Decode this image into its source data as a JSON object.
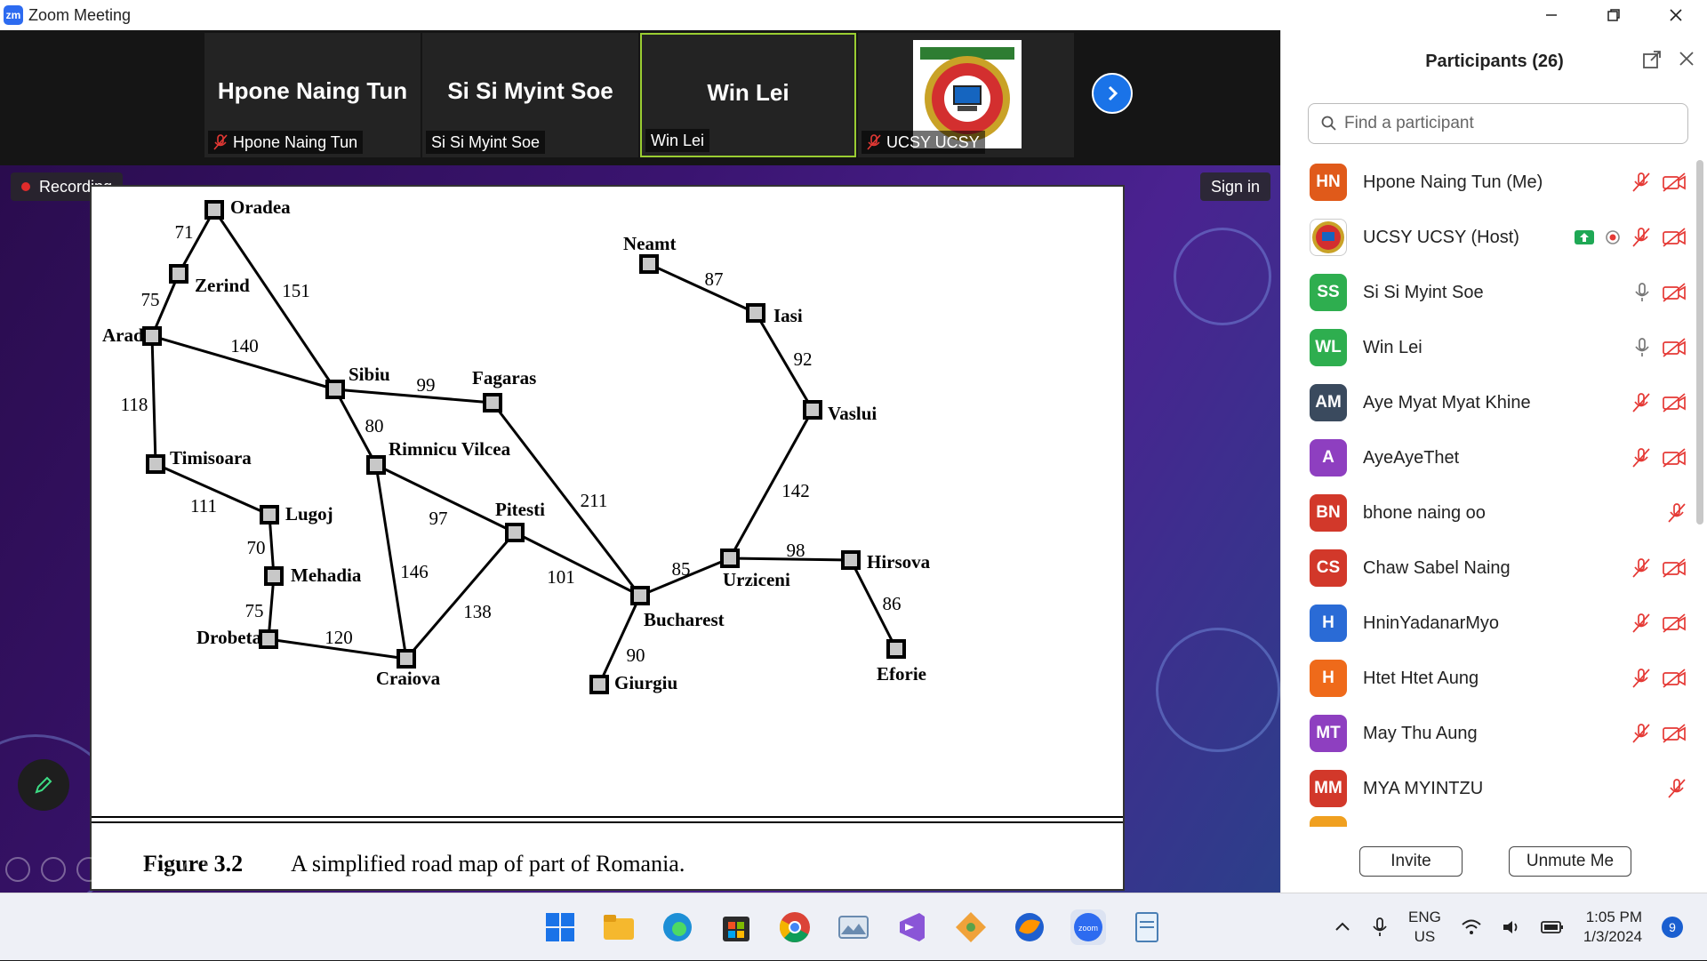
{
  "window": {
    "app_icon_text": "zm",
    "title": "Zoom Meeting"
  },
  "video_strip": {
    "tiles": [
      {
        "big_name": "Hpone Naing Tun",
        "label": "Hpone Naing Tun",
        "muted": true
      },
      {
        "big_name": "Si Si Myint Soe",
        "label": "Si Si Myint Soe",
        "muted": false
      },
      {
        "big_name": "Win Lei",
        "label": "Win Lei",
        "muted": false,
        "active": true
      },
      {
        "big_name": "",
        "label": "UCSY UCSY",
        "muted": true
      }
    ]
  },
  "share": {
    "recording_label": "Recording",
    "sign_in_label": "Sign in",
    "caption_figure": "Figure 3.2",
    "caption_text": "A simplified road map of part of Romania.",
    "cities": [
      "Oradea",
      "Zerind",
      "Arad",
      "Sibiu",
      "Fagaras",
      "Timisoara",
      "Rimnicu Vilcea",
      "Lugoj",
      "Pitesti",
      "Mehadia",
      "Drobeta",
      "Craiova",
      "Bucharest",
      "Giurgiu",
      "Neamt",
      "Iasi",
      "Vaslui",
      "Urziceni",
      "Hirsova",
      "Eforie"
    ],
    "roads": [
      {
        "a": "Oradea",
        "b": "Zerind",
        "km": "71"
      },
      {
        "a": "Zerind",
        "b": "Arad",
        "km": "75"
      },
      {
        "a": "Oradea",
        "b": "Sibiu",
        "km": "151"
      },
      {
        "a": "Arad",
        "b": "Sibiu",
        "km": "140"
      },
      {
        "a": "Arad",
        "b": "Timisoara",
        "km": "118"
      },
      {
        "a": "Sibiu",
        "b": "Fagaras",
        "km": "99"
      },
      {
        "a": "Sibiu",
        "b": "Rimnicu Vilcea",
        "km": "80"
      },
      {
        "a": "Timisoara",
        "b": "Lugoj",
        "km": "111"
      },
      {
        "a": "Lugoj",
        "b": "Mehadia",
        "km": "70"
      },
      {
        "a": "Mehadia",
        "b": "Drobeta",
        "km": "75"
      },
      {
        "a": "Drobeta",
        "b": "Craiova",
        "km": "120"
      },
      {
        "a": "Rimnicu Vilcea",
        "b": "Craiova",
        "km": "146"
      },
      {
        "a": "Rimnicu Vilcea",
        "b": "Pitesti",
        "km": "97"
      },
      {
        "a": "Craiova",
        "b": "Pitesti",
        "km": "138"
      },
      {
        "a": "Pitesti",
        "b": "Bucharest",
        "km": "101"
      },
      {
        "a": "Fagaras",
        "b": "Bucharest",
        "km": "211"
      },
      {
        "a": "Bucharest",
        "b": "Giurgiu",
        "km": "90"
      },
      {
        "a": "Bucharest",
        "b": "Urziceni",
        "km": "85"
      },
      {
        "a": "Urziceni",
        "b": "Hirsova",
        "km": "98"
      },
      {
        "a": "Hirsova",
        "b": "Eforie",
        "km": "86"
      },
      {
        "a": "Urziceni",
        "b": "Vaslui",
        "km": "142"
      },
      {
        "a": "Vaslui",
        "b": "Iasi",
        "km": "92"
      },
      {
        "a": "Iasi",
        "b": "Neamt",
        "km": "87"
      }
    ]
  },
  "participants_panel": {
    "title": "Participants (26)",
    "search_placeholder": "Find a participant",
    "participants": [
      {
        "initials": "HN",
        "name": "Hpone Naing Tun (Me)",
        "color": "#e05a1a",
        "mic": "muted",
        "video": "off"
      },
      {
        "initials": "",
        "name": "UCSY UCSY (Host)",
        "color": "#c62828",
        "mic": "muted",
        "video": "off",
        "sharing": true,
        "recording": true
      },
      {
        "initials": "SS",
        "name": "Si Si Myint Soe",
        "color": "#2eae4f",
        "mic": "on",
        "video": "off"
      },
      {
        "initials": "WL",
        "name": "Win Lei",
        "color": "#2eae4f",
        "mic": "on",
        "video": "off"
      },
      {
        "initials": "AM",
        "name": "Aye Myat Myat Khine",
        "color": "#3a4a5e",
        "mic": "muted",
        "video": "off"
      },
      {
        "initials": "A",
        "name": "AyeAyeThet",
        "color": "#8e3fc0",
        "mic": "muted",
        "video": "off"
      },
      {
        "initials": "BN",
        "name": "bhone naing oo",
        "color": "#d2382a",
        "mic": "muted",
        "video": "none"
      },
      {
        "initials": "CS",
        "name": "Chaw Sabel Naing",
        "color": "#d2382a",
        "mic": "muted",
        "video": "off"
      },
      {
        "initials": "H",
        "name": "HninYadanarMyo",
        "color": "#2a6bd6",
        "mic": "muted",
        "video": "off"
      },
      {
        "initials": "H",
        "name": "Htet Htet Aung",
        "color": "#ef6a1a",
        "mic": "muted",
        "video": "off"
      },
      {
        "initials": "MT",
        "name": "May Thu Aung",
        "color": "#8e3fc0",
        "mic": "muted",
        "video": "off"
      },
      {
        "initials": "MM",
        "name": "MYA MYINTZU",
        "color": "#d2382a",
        "mic": "muted",
        "video": "none"
      }
    ],
    "invite_label": "Invite",
    "unmute_label": "Unmute Me"
  },
  "taskbar": {
    "apps": [
      "windows-start",
      "file-explorer",
      "edge",
      "microsoft-store",
      "chrome",
      "photos",
      "visual-studio",
      "git-tool",
      "firefox",
      "zoom",
      "notepad"
    ],
    "lang_top": "ENG",
    "lang_bottom": "US",
    "time": "1:05 PM",
    "date": "1/3/2024",
    "notification_count": "9"
  }
}
